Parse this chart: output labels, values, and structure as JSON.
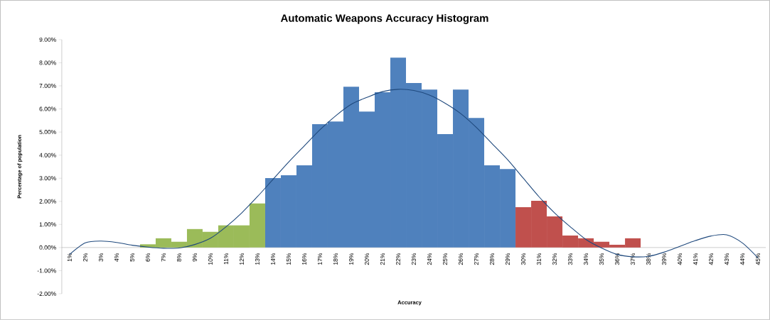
{
  "chart_data": {
    "type": "bar",
    "title": "Automatic Weapons Accuracy Histogram",
    "xlabel": "Accuracy",
    "ylabel": "Percentage of population",
    "categories": [
      "1%",
      "2%",
      "3%",
      "4%",
      "5%",
      "6%",
      "7%",
      "8%",
      "9%",
      "10%",
      "11%",
      "12%",
      "13%",
      "14%",
      "15%",
      "16%",
      "17%",
      "18%",
      "19%",
      "20%",
      "21%",
      "22%",
      "23%",
      "24%",
      "25%",
      "26%",
      "27%",
      "28%",
      "29%",
      "30%",
      "31%",
      "32%",
      "33%",
      "34%",
      "35%",
      "36%",
      "37%",
      "38%",
      "39%",
      "40%",
      "41%",
      "42%",
      "43%",
      "44%",
      "45%"
    ],
    "series": [
      {
        "colors": [
          "#9bbb59",
          "#9bbb59",
          "#9bbb59",
          "#9bbb59",
          "#9bbb59",
          "#9bbb59",
          "#9bbb59",
          "#9bbb59",
          "#9bbb59",
          "#9bbb59",
          "#9bbb59",
          "#9bbb59",
          "#9bbb59",
          "#4f81bd",
          "#4f81bd",
          "#4f81bd",
          "#4f81bd",
          "#4f81bd",
          "#4f81bd",
          "#4f81bd",
          "#4f81bd",
          "#4f81bd",
          "#4f81bd",
          "#4f81bd",
          "#4f81bd",
          "#4f81bd",
          "#4f81bd",
          "#4f81bd",
          "#4f81bd",
          "#c0504d",
          "#c0504d",
          "#c0504d",
          "#c0504d",
          "#c0504d",
          "#c0504d",
          "#c0504d",
          "#c0504d",
          "#c0504d",
          "#c0504d",
          "#c0504d",
          "#c0504d",
          "#c0504d",
          "#c0504d",
          "#c0504d",
          "#c0504d"
        ],
        "values": [
          0,
          0,
          0,
          0,
          0,
          0.14,
          0.4,
          0.25,
          0.8,
          0.68,
          0.96,
          0.96,
          1.91,
          3.01,
          3.13,
          3.56,
          5.34,
          5.46,
          6.96,
          5.89,
          6.72,
          8.22,
          7.12,
          6.84,
          4.91,
          6.84,
          5.61,
          3.56,
          3.4,
          1.75,
          2.02,
          1.35,
          0.52,
          0.4,
          0.25,
          0.12,
          0.4,
          0,
          0,
          0,
          0,
          0,
          0,
          0,
          0
        ]
      },
      {
        "type": "line",
        "color": "#1f497d",
        "values": [
          -0.3,
          0.2,
          0.28,
          0.22,
          0.1,
          0.02,
          -0.03,
          -0.02,
          0.13,
          0.4,
          0.9,
          1.5,
          2.2,
          2.95,
          3.7,
          4.4,
          5.1,
          5.7,
          6.2,
          6.5,
          6.75,
          6.85,
          6.8,
          6.6,
          6.25,
          5.8,
          5.2,
          4.5,
          3.8,
          3.0,
          2.2,
          1.5,
          0.9,
          0.35,
          -0.02,
          -0.3,
          -0.4,
          -0.38,
          -0.2,
          0.05,
          0.3,
          0.5,
          0.55,
          0.2,
          -0.45
        ]
      }
    ],
    "ylim": [
      -2,
      9
    ],
    "yticks": [
      {
        "value": -2,
        "label": "-2.00%"
      },
      {
        "value": -1,
        "label": "-1.00%"
      },
      {
        "value": 0,
        "label": "0.00%"
      },
      {
        "value": 1,
        "label": "1.00%"
      },
      {
        "value": 2,
        "label": "2.00%"
      },
      {
        "value": 3,
        "label": "3.00%"
      },
      {
        "value": 4,
        "label": "4.00%"
      },
      {
        "value": 5,
        "label": "5.00%"
      },
      {
        "value": 6,
        "label": "6.00%"
      },
      {
        "value": 7,
        "label": "7.00%"
      },
      {
        "value": 8,
        "label": "8.00%"
      },
      {
        "value": 9,
        "label": "9.00%"
      }
    ]
  }
}
